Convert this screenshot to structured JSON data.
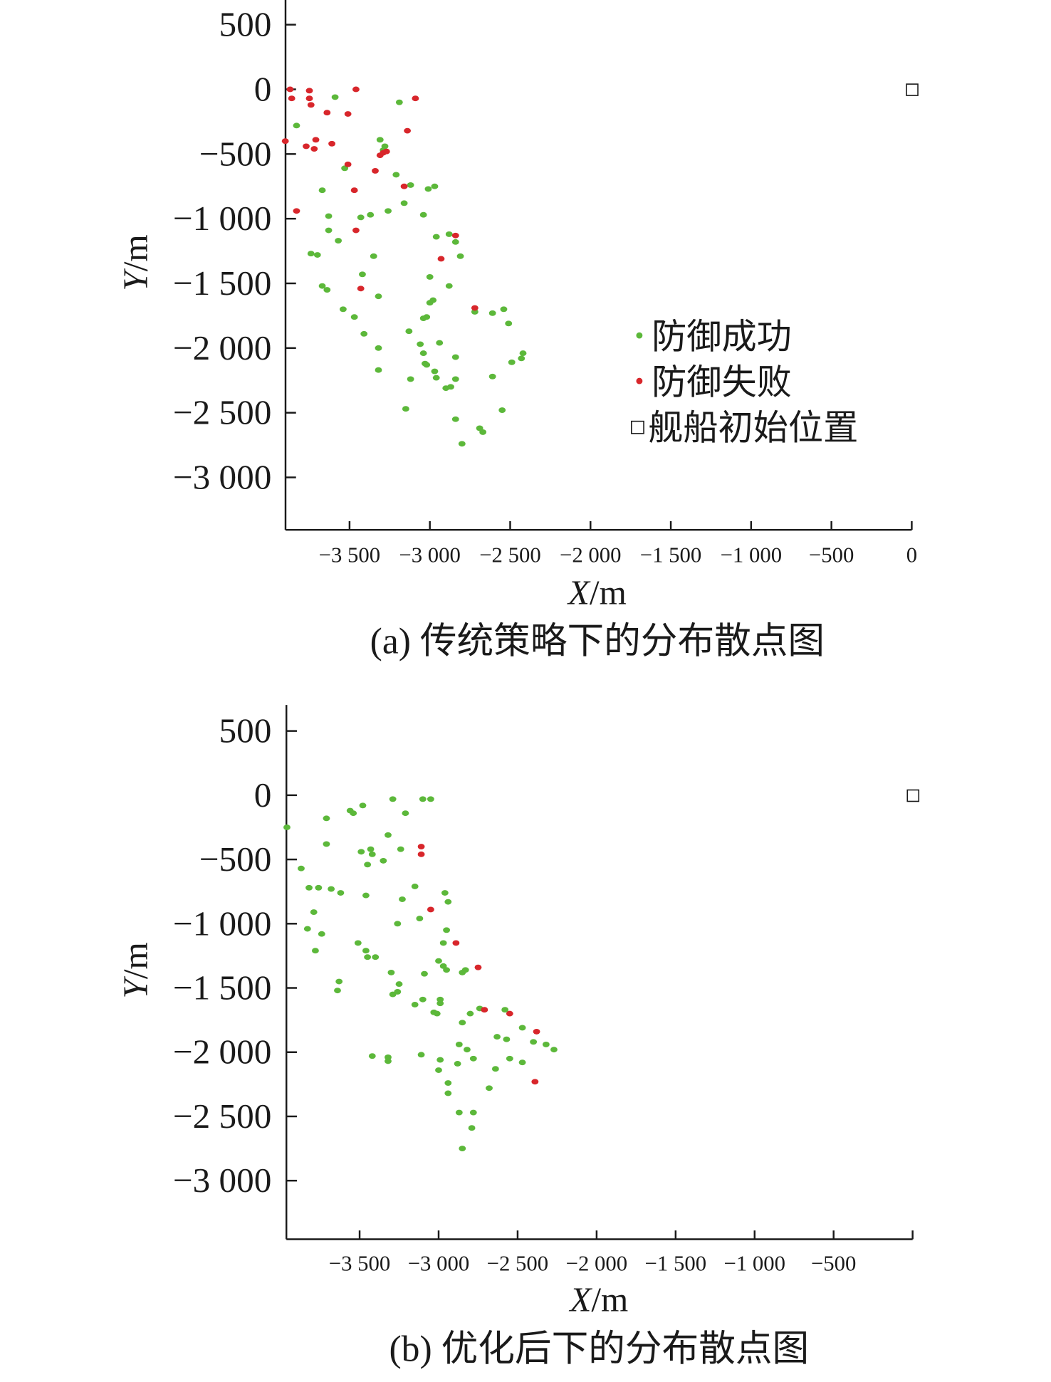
{
  "chart_data": [
    {
      "type": "scatter",
      "caption": "(a) 传统策略下的分布散点图",
      "xlabel_italic": "X",
      "xlabel_unit": "/m",
      "ylabel_italic": "Y",
      "ylabel_unit": "/m",
      "xlim": [
        -3900,
        0
      ],
      "ylim": [
        -3400,
        700
      ],
      "xticks": [
        -3500,
        -3000,
        -2500,
        -2000,
        -1500,
        -1000,
        -500,
        0
      ],
      "xtick_labels": [
        "−3 500",
        "−3 000",
        "−2 500",
        "−2 000",
        "−1 500",
        "−1 000",
        "−500",
        "0"
      ],
      "yticks": [
        500,
        0,
        -500,
        -1000,
        -1500,
        -2000,
        -2500,
        -3000
      ],
      "ytick_labels": [
        "500",
        "0",
        "−500",
        "−1 000",
        "−1 500",
        "−2 000",
        "−2 500",
        "−3 000"
      ],
      "legend_placement": "center-right",
      "series": [
        {
          "name": "防御成功",
          "color": "#5cb83a",
          "marker": "dot",
          "points": [
            [
              -3590,
              -60
            ],
            [
              -3830,
              -280
            ],
            [
              -3190,
              -100
            ],
            [
              -3310,
              -390
            ],
            [
              -3280,
              -440
            ],
            [
              -3290,
              -470
            ],
            [
              -3530,
              -610
            ],
            [
              -3210,
              -660
            ],
            [
              -3670,
              -780
            ],
            [
              -3120,
              -740
            ],
            [
              -3010,
              -770
            ],
            [
              -2970,
              -750
            ],
            [
              -3160,
              -880
            ],
            [
              -3630,
              -980
            ],
            [
              -3430,
              -990
            ],
            [
              -3370,
              -970
            ],
            [
              -3260,
              -940
            ],
            [
              -3040,
              -970
            ],
            [
              -3630,
              -1090
            ],
            [
              -3570,
              -1170
            ],
            [
              -3740,
              -1270
            ],
            [
              -3700,
              -1280
            ],
            [
              -3350,
              -1290
            ],
            [
              -2960,
              -1140
            ],
            [
              -2880,
              -1120
            ],
            [
              -2840,
              -1180
            ],
            [
              -2810,
              -1290
            ],
            [
              -3670,
              -1520
            ],
            [
              -3640,
              -1550
            ],
            [
              -3420,
              -1430
            ],
            [
              -3320,
              -1600
            ],
            [
              -3000,
              -1450
            ],
            [
              -2880,
              -1520
            ],
            [
              -3540,
              -1700
            ],
            [
              -3470,
              -1760
            ],
            [
              -2980,
              -1630
            ],
            [
              -3000,
              -1650
            ],
            [
              -3040,
              -1770
            ],
            [
              -3020,
              -1760
            ],
            [
              -2720,
              -1720
            ],
            [
              -2610,
              -1730
            ],
            [
              -2540,
              -1700
            ],
            [
              -3410,
              -1890
            ],
            [
              -3130,
              -1870
            ],
            [
              -2510,
              -1810
            ],
            [
              -3320,
              -2000
            ],
            [
              -3060,
              -1970
            ],
            [
              -2940,
              -1960
            ],
            [
              -2840,
              -2070
            ],
            [
              -3320,
              -2170
            ],
            [
              -3040,
              -2040
            ],
            [
              -3030,
              -2120
            ],
            [
              -3020,
              -2130
            ],
            [
              -2970,
              -2180
            ],
            [
              -2960,
              -2230
            ],
            [
              -3120,
              -2240
            ],
            [
              -2900,
              -2310
            ],
            [
              -2870,
              -2300
            ],
            [
              -2840,
              -2240
            ],
            [
              -2610,
              -2220
            ],
            [
              -2490,
              -2110
            ],
            [
              -2420,
              -2040
            ],
            [
              -2430,
              -2080
            ],
            [
              -3150,
              -2470
            ],
            [
              -2840,
              -2550
            ],
            [
              -2690,
              -2620
            ],
            [
              -2670,
              -2650
            ],
            [
              -2800,
              -2740
            ],
            [
              -2550,
              -2480
            ]
          ]
        },
        {
          "name": "防御失败",
          "color": "#d8262b",
          "marker": "dot",
          "points": [
            [
              -3870,
              0
            ],
            [
              -3860,
              -70
            ],
            [
              -3750,
              -10
            ],
            [
              -3750,
              -70
            ],
            [
              -3740,
              -120
            ],
            [
              -3460,
              0
            ],
            [
              -3090,
              -70
            ],
            [
              -3640,
              -180
            ],
            [
              -3510,
              -190
            ],
            [
              -3140,
              -320
            ],
            [
              -3900,
              -400
            ],
            [
              -3770,
              -440
            ],
            [
              -3720,
              -460
            ],
            [
              -3710,
              -390
            ],
            [
              -3610,
              -420
            ],
            [
              -3510,
              -580
            ],
            [
              -3310,
              -510
            ],
            [
              -3290,
              -490
            ],
            [
              -3270,
              -480
            ],
            [
              -3340,
              -630
            ],
            [
              -3470,
              -780
            ],
            [
              -3160,
              -750
            ],
            [
              -3830,
              -940
            ],
            [
              -3460,
              -1090
            ],
            [
              -2840,
              -1130
            ],
            [
              -2930,
              -1310
            ],
            [
              -3430,
              -1540
            ],
            [
              -2720,
              -1690
            ]
          ]
        },
        {
          "name": "舰船初始位置",
          "color": "#1a1a1a",
          "marker": "open-square",
          "points": [
            [
              0,
              0
            ]
          ]
        }
      ]
    },
    {
      "type": "scatter",
      "caption": "(b) 优化后下的分布散点图",
      "xlabel_italic": "X",
      "xlabel_unit": "/m",
      "ylabel_italic": "Y",
      "ylabel_unit": "/m",
      "xlim": [
        -3960,
        0
      ],
      "ylim": [
        -3450,
        700
      ],
      "xticks": [
        -3500,
        -3000,
        -2500,
        -2000,
        -1500,
        -1000,
        -500,
        0
      ],
      "xtick_labels": [
        "−3 500",
        "−3 000",
        "−2 500",
        "−2 000",
        "−1 500",
        "−1 000",
        "−500",
        ""
      ],
      "yticks": [
        500,
        0,
        -500,
        -1000,
        -1500,
        -2000,
        -2500,
        -3000
      ],
      "ytick_labels": [
        "500",
        "0",
        "−500",
        "−1 000",
        "−1 500",
        "−2 000",
        "−2 500",
        "−3 000"
      ],
      "series": [
        {
          "name": "防御成功",
          "color": "#5cb83a",
          "marker": "dot",
          "points": [
            [
              -3960,
              -250
            ],
            [
              -3710,
              -180
            ],
            [
              -3560,
              -120
            ],
            [
              -3540,
              -140
            ],
            [
              -3480,
              -80
            ],
            [
              -3290,
              -30
            ],
            [
              -3210,
              -140
            ],
            [
              -3100,
              -30
            ],
            [
              -3050,
              -30
            ],
            [
              -3710,
              -380
            ],
            [
              -3870,
              -570
            ],
            [
              -3490,
              -440
            ],
            [
              -3430,
              -420
            ],
            [
              -3420,
              -460
            ],
            [
              -3450,
              -540
            ],
            [
              -3350,
              -510
            ],
            [
              -3320,
              -310
            ],
            [
              -3240,
              -420
            ],
            [
              -3820,
              -720
            ],
            [
              -3760,
              -720
            ],
            [
              -3680,
              -730
            ],
            [
              -3620,
              -760
            ],
            [
              -3460,
              -780
            ],
            [
              -3230,
              -810
            ],
            [
              -3150,
              -710
            ],
            [
              -2960,
              -760
            ],
            [
              -2940,
              -830
            ],
            [
              -3790,
              -910
            ],
            [
              -3830,
              -1040
            ],
            [
              -3740,
              -1080
            ],
            [
              -3260,
              -1000
            ],
            [
              -3120,
              -960
            ],
            [
              -2950,
              -1050
            ],
            [
              -3780,
              -1210
            ],
            [
              -3510,
              -1150
            ],
            [
              -3460,
              -1210
            ],
            [
              -3450,
              -1260
            ],
            [
              -3400,
              -1260
            ],
            [
              -2970,
              -1150
            ],
            [
              -3000,
              -1290
            ],
            [
              -2970,
              -1330
            ],
            [
              -2950,
              -1360
            ],
            [
              -3090,
              -1390
            ],
            [
              -3300,
              -1380
            ],
            [
              -3630,
              -1450
            ],
            [
              -3640,
              -1520
            ],
            [
              -3250,
              -1470
            ],
            [
              -3260,
              -1530
            ],
            [
              -3290,
              -1550
            ],
            [
              -3150,
              -1630
            ],
            [
              -3100,
              -1590
            ],
            [
              -2990,
              -1590
            ],
            [
              -2990,
              -1620
            ],
            [
              -3030,
              -1690
            ],
            [
              -3010,
              -1700
            ],
            [
              -2850,
              -1380
            ],
            [
              -2830,
              -1360
            ],
            [
              -2740,
              -1660
            ],
            [
              -2800,
              -1700
            ],
            [
              -2850,
              -1770
            ],
            [
              -2580,
              -1670
            ],
            [
              -2470,
              -1810
            ],
            [
              -2630,
              -1880
            ],
            [
              -2570,
              -1900
            ],
            [
              -2870,
              -1940
            ],
            [
              -2820,
              -1980
            ],
            [
              -2400,
              -1920
            ],
            [
              -2320,
              -1940
            ],
            [
              -2270,
              -1980
            ],
            [
              -2640,
              -2130
            ],
            [
              -2550,
              -2050
            ],
            [
              -2780,
              -2050
            ],
            [
              -2880,
              -2090
            ],
            [
              -2990,
              -2060
            ],
            [
              -3000,
              -2140
            ],
            [
              -3110,
              -2020
            ],
            [
              -3420,
              -2030
            ],
            [
              -3320,
              -2040
            ],
            [
              -3320,
              -2070
            ],
            [
              -2470,
              -2080
            ],
            [
              -2940,
              -2240
            ],
            [
              -2940,
              -2320
            ],
            [
              -2680,
              -2280
            ],
            [
              -2870,
              -2470
            ],
            [
              -2780,
              -2470
            ],
            [
              -2790,
              -2590
            ],
            [
              -2850,
              -2750
            ]
          ]
        },
        {
          "name": "防御失败",
          "color": "#d8262b",
          "marker": "dot",
          "points": [
            [
              -3110,
              -400
            ],
            [
              -3110,
              -460
            ],
            [
              -3050,
              -890
            ],
            [
              -2890,
              -1150
            ],
            [
              -2750,
              -1340
            ],
            [
              -2710,
              -1670
            ],
            [
              -2550,
              -1700
            ],
            [
              -2380,
              -1840
            ],
            [
              -2390,
              -2230
            ]
          ]
        },
        {
          "name": "舰船初始位置",
          "color": "#1a1a1a",
          "marker": "open-square",
          "points": [
            [
              0,
              0
            ]
          ]
        }
      ]
    }
  ]
}
